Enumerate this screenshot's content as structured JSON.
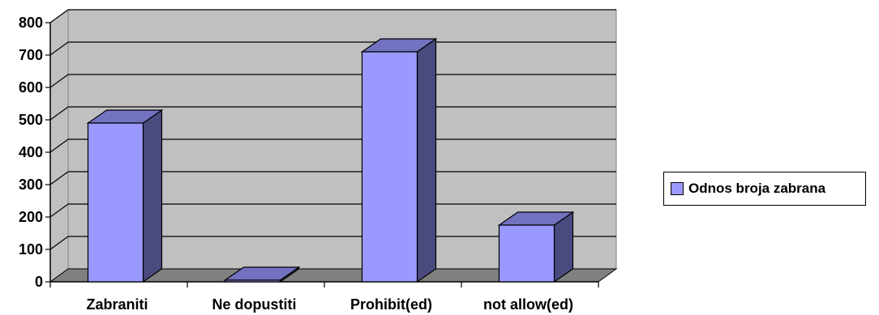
{
  "chart_data": {
    "type": "bar",
    "style": "3d-column",
    "categories": [
      "Zabraniti",
      "Ne dopustiti",
      "Prohibit(ed)",
      "not allow(ed)"
    ],
    "series": [
      {
        "name": "Odnos broja zabrana",
        "values": [
          490,
          5,
          710,
          175
        ]
      }
    ],
    "ylim": [
      0,
      800
    ],
    "yticks": [
      "0",
      "100",
      "200",
      "300",
      "400",
      "500",
      "600",
      "700",
      "800"
    ],
    "grid": true,
    "legend_position": "right",
    "colors": {
      "bar_front": "#9999ff",
      "bar_side": "#4a4a7f",
      "bar_top": "#7272c0",
      "wall": "#c0c0c0",
      "floor": "#808080"
    }
  },
  "legend": {
    "label": "Odnos broja zabrana"
  }
}
